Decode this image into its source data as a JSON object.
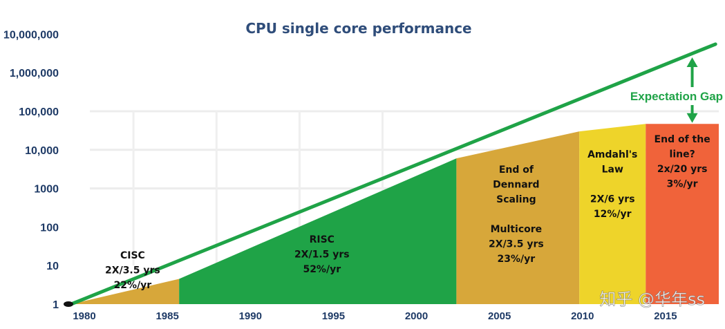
{
  "chart_data": {
    "type": "area",
    "title": "CPU single core performance",
    "y_scale": "log",
    "ylim": [
      1,
      10000000
    ],
    "xlim": [
      1980,
      2019
    ],
    "x_ticks": [
      "1980",
      "1985",
      "1990",
      "1995",
      "2000",
      "2005",
      "2010",
      "2015"
    ],
    "y_ticks": [
      "1",
      "10",
      "100",
      "1000",
      "10,000",
      "100,000",
      "1,000,000",
      "10,000,000"
    ],
    "colors": {
      "cisc": "#d7a73a",
      "risc": "#1fa347",
      "dennard": "#d7a73a",
      "amdahl": "#eed42a",
      "endline": "#f0633a",
      "trend": "#1fa347",
      "axis_text": "#1e3a66"
    },
    "trend_line": {
      "x": [
        1980,
        2018.8
      ],
      "y": [
        1,
        5500000
      ]
    },
    "eras": [
      {
        "key": "cisc",
        "x": [
          1980,
          1986.5
        ],
        "y": [
          1,
          4.5
        ],
        "lines": [
          "CISC",
          "2X/3.5 yrs",
          "22%/yr"
        ]
      },
      {
        "key": "risc",
        "x": [
          1986.5,
          2003.2
        ],
        "y": [
          4.5,
          6000
        ],
        "lines": [
          "RISC",
          "2X/1.5 yrs",
          "52%/yr"
        ]
      },
      {
        "key": "dennard",
        "x": [
          2003.2,
          2010.6
        ],
        "y": [
          6000,
          30000
        ],
        "lines": [
          "End of",
          "Dennard",
          "Scaling",
          "",
          "Multicore",
          "2X/3.5 yrs",
          "23%/yr"
        ]
      },
      {
        "key": "amdahl",
        "x": [
          2010.6,
          2014.6
        ],
        "y": [
          30000,
          47000
        ],
        "lines": [
          "Amdahl's",
          "Law",
          "",
          "2X/6 yrs",
          "12%/yr"
        ]
      },
      {
        "key": "endline",
        "x": [
          2014.6,
          2019
        ],
        "y": [
          47000,
          47000
        ],
        "lines": [
          "End of the",
          "line?",
          "2x/20 yrs",
          "3%/yr"
        ]
      }
    ],
    "gap": {
      "label": "Expectation Gap",
      "x": 2017.4,
      "y_from": 50000,
      "y_to": 2500000
    },
    "watermark": "知乎 @华年ss"
  }
}
